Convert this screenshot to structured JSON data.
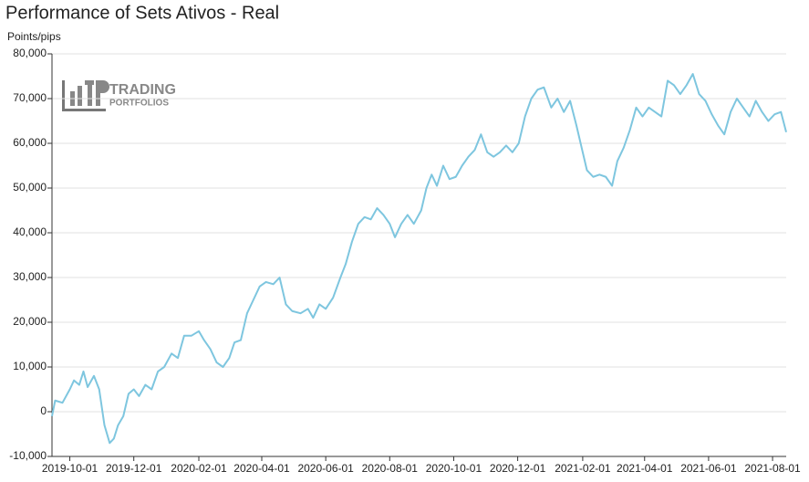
{
  "chart_data": {
    "type": "line",
    "title": "Performance of Sets Ativos - Real",
    "y_label": "Points/pips",
    "watermark": [
      "TRADING",
      "PORTFOLIOS"
    ],
    "x": [
      "2019-09-14",
      "2019-09-17",
      "2019-09-24",
      "2019-10-01",
      "2019-10-05",
      "2019-10-10",
      "2019-10-14",
      "2019-10-18",
      "2019-10-24",
      "2019-10-29",
      "2019-11-03",
      "2019-11-08",
      "2019-11-12",
      "2019-11-16",
      "2019-11-21",
      "2019-11-26",
      "2019-12-01",
      "2019-12-06",
      "2019-12-12",
      "2019-12-18",
      "2019-12-24",
      "2019-12-30",
      "2020-01-06",
      "2020-01-12",
      "2020-01-18",
      "2020-01-25",
      "2020-02-01",
      "2020-02-06",
      "2020-02-12",
      "2020-02-18",
      "2020-02-24",
      "2020-03-01",
      "2020-03-06",
      "2020-03-12",
      "2020-03-18",
      "2020-03-24",
      "2020-03-30",
      "2020-04-05",
      "2020-04-12",
      "2020-04-18",
      "2020-04-24",
      "2020-04-30",
      "2020-05-08",
      "2020-05-15",
      "2020-05-20",
      "2020-05-26",
      "2020-06-01",
      "2020-06-08",
      "2020-06-15",
      "2020-06-20",
      "2020-06-26",
      "2020-07-02",
      "2020-07-08",
      "2020-07-14",
      "2020-07-20",
      "2020-07-26",
      "2020-08-01",
      "2020-08-06",
      "2020-08-12",
      "2020-08-18",
      "2020-08-24",
      "2020-08-31",
      "2020-09-05",
      "2020-09-10",
      "2020-09-15",
      "2020-09-21",
      "2020-09-27",
      "2020-10-03",
      "2020-10-09",
      "2020-10-15",
      "2020-10-21",
      "2020-10-27",
      "2020-11-02",
      "2020-11-08",
      "2020-11-14",
      "2020-11-20",
      "2020-11-26",
      "2020-12-02",
      "2020-12-08",
      "2020-12-14",
      "2020-12-20",
      "2020-12-26",
      "2021-01-02",
      "2021-01-08",
      "2021-01-14",
      "2021-01-20",
      "2021-01-26",
      "2021-02-01",
      "2021-02-05",
      "2021-02-11",
      "2021-02-17",
      "2021-02-23",
      "2021-03-01",
      "2021-03-06",
      "2021-03-12",
      "2021-03-18",
      "2021-03-24",
      "2021-03-30",
      "2021-04-05",
      "2021-04-11",
      "2021-04-17",
      "2021-04-23",
      "2021-04-29",
      "2021-05-05",
      "2021-05-11",
      "2021-05-17",
      "2021-05-23",
      "2021-05-29",
      "2021-06-04",
      "2021-06-10",
      "2021-06-16",
      "2021-06-22",
      "2021-06-28",
      "2021-07-04",
      "2021-07-10",
      "2021-07-16",
      "2021-07-22",
      "2021-07-28",
      "2021-08-03",
      "2021-08-09",
      "2021-08-14"
    ],
    "series": [
      {
        "name": "Sets Ativos - Real",
        "color": "#7ec6df",
        "values": [
          -1000,
          2500,
          2000,
          5000,
          7000,
          6000,
          9000,
          5500,
          8000,
          5000,
          -3000,
          -7000,
          -6000,
          -3000,
          -1000,
          4000,
          5000,
          3500,
          6000,
          5000,
          9000,
          10000,
          13000,
          12000,
          17000,
          17000,
          18000,
          16000,
          14000,
          11000,
          10000,
          12000,
          15500,
          16000,
          22000,
          25000,
          28000,
          29000,
          28500,
          30000,
          24000,
          22500,
          22000,
          23000,
          21000,
          24000,
          23000,
          25500,
          30000,
          33000,
          38000,
          42000,
          43500,
          43000,
          45500,
          44000,
          42000,
          39000,
          42000,
          44000,
          42000,
          45000,
          50000,
          53000,
          50500,
          55000,
          52000,
          52500,
          55000,
          57000,
          58500,
          62000,
          58000,
          57000,
          58000,
          59500,
          58000,
          60000,
          66000,
          70000,
          72000,
          72500,
          68000,
          70000,
          67000,
          69500,
          64000,
          58000,
          54000,
          52500,
          53000,
          52500,
          50500,
          56000,
          59000,
          63000,
          68000,
          66000,
          68000,
          67000,
          66000,
          74000,
          73000,
          71000,
          73000,
          75500,
          71000,
          69500,
          66500,
          64000,
          62000,
          67000,
          70000,
          68000,
          66000,
          69500,
          67000,
          65000,
          66500,
          67000,
          62500
        ]
      }
    ],
    "xlim": [
      "2019-09-14",
      "2021-08-14"
    ],
    "xticks": [
      "2019-10-01",
      "2019-12-01",
      "2020-02-01",
      "2020-04-01",
      "2020-06-01",
      "2020-08-01",
      "2020-10-01",
      "2020-12-01",
      "2021-02-01",
      "2021-04-01",
      "2021-06-01",
      "2021-08-01"
    ],
    "ylim": [
      -10000,
      80000
    ],
    "yticks": [
      {
        "value": -10000,
        "label": "-10,000"
      },
      0,
      {
        "value": 10000,
        "label": "10,000"
      },
      {
        "value": 20000,
        "label": "20,000"
      },
      {
        "value": 30000,
        "label": "30,000"
      },
      {
        "value": 40000,
        "label": "40,000"
      },
      {
        "value": 50000,
        "label": "50,000"
      },
      {
        "value": 60000,
        "label": "60,000"
      },
      {
        "value": 70000,
        "label": "70,000"
      },
      {
        "value": 80000,
        "label": "80,000"
      }
    ],
    "grid": true
  }
}
